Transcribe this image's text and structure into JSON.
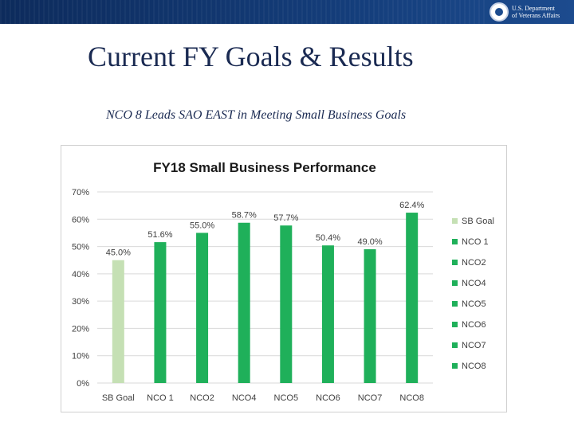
{
  "slide": {
    "title": "Current FY Goals & Results",
    "subtitle": "NCO 8 Leads SAO EAST in Meeting  Small Business Goals",
    "logo_line1": "U.S. Department",
    "logo_line2": "of Veterans Affairs"
  },
  "colors": {
    "header_blue": "#143d7a",
    "goal_bar": "#c5e0b4",
    "nco_bar": "#1fb05a",
    "title_text": "#1a2a52"
  },
  "chart_data": {
    "type": "bar",
    "title": "FY18 Small Business Performance",
    "categories": [
      "SB Goal",
      "NCO 1",
      "NCO2",
      "NCO4",
      "NCO5",
      "NCO6",
      "NCO7",
      "NCO8"
    ],
    "values": [
      45.0,
      51.6,
      55.0,
      58.7,
      57.7,
      50.4,
      49.0,
      62.4
    ],
    "data_labels": [
      "45.0%",
      "51.6%",
      "55.0%",
      "58.7%",
      "57.7%",
      "50.4%",
      "49.0%",
      "62.4%"
    ],
    "yticks": [
      "0%",
      "10%",
      "20%",
      "30%",
      "40%",
      "50%",
      "60%",
      "70%"
    ],
    "ylim": [
      0,
      70
    ],
    "grid": true,
    "legend_position": "right",
    "legend": [
      "SB Goal",
      "NCO 1",
      "NCO2",
      "NCO4",
      "NCO5",
      "NCO6",
      "NCO7",
      "NCO8"
    ],
    "xlabel": "",
    "ylabel": ""
  }
}
